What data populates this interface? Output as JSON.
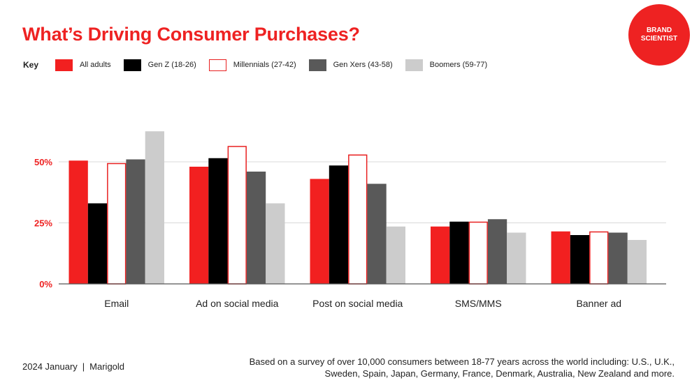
{
  "title": "What’s Driving Consumer Purchases?",
  "brand": {
    "line1": "BRAND",
    "line2": "SCIENTIST"
  },
  "legend_key": "Key",
  "colors": {
    "all_adults": "#f22020",
    "gen_z": "#000000",
    "millennials_fill": "#ffffff",
    "millennials_stroke": "#e82020",
    "gen_x": "#595959",
    "boomers": "#cccccc",
    "accent": "#ee2222"
  },
  "footer": {
    "date": "2024 January",
    "divider": "|",
    "source": "Marigold",
    "note_line1": "Based on a survey of over 10,000 consumers between 18-77 years across the world including: U.S., U.K.,",
    "note_line2": "Sweden, Spain, Japan, Germany, France, Denmark, Australia, New Zealand and more."
  },
  "chart_data": {
    "type": "bar",
    "title": "What’s Driving Consumer Purchases?",
    "xlabel": "",
    "ylabel": "",
    "ylim": [
      0,
      75
    ],
    "yticks": [
      0,
      25,
      50
    ],
    "ytick_labels": [
      "0%",
      "25%",
      "50%"
    ],
    "grid": true,
    "legend_position": "top-left",
    "categories": [
      "Email",
      "Ad on social media",
      "Post on social media",
      "SMS/MMS",
      "Banner ad"
    ],
    "series": [
      {
        "name": "All adults",
        "key": "all_adults",
        "values": [
          50.5,
          48,
          43,
          23.5,
          21.5
        ]
      },
      {
        "name": "Gen Z (18-26)",
        "key": "gen_z",
        "values": [
          33,
          51.5,
          48.5,
          25.5,
          20
        ]
      },
      {
        "name": "Millennials (27-42)",
        "key": "millennials",
        "values": [
          49.5,
          56.5,
          53,
          25.5,
          21.5
        ]
      },
      {
        "name": "Gen Xers (43-58)",
        "key": "gen_x",
        "values": [
          51,
          46,
          41,
          26.5,
          21
        ]
      },
      {
        "name": "Boomers (59-77)",
        "key": "boomers",
        "values": [
          62.5,
          33,
          23.5,
          21,
          18
        ]
      }
    ]
  }
}
